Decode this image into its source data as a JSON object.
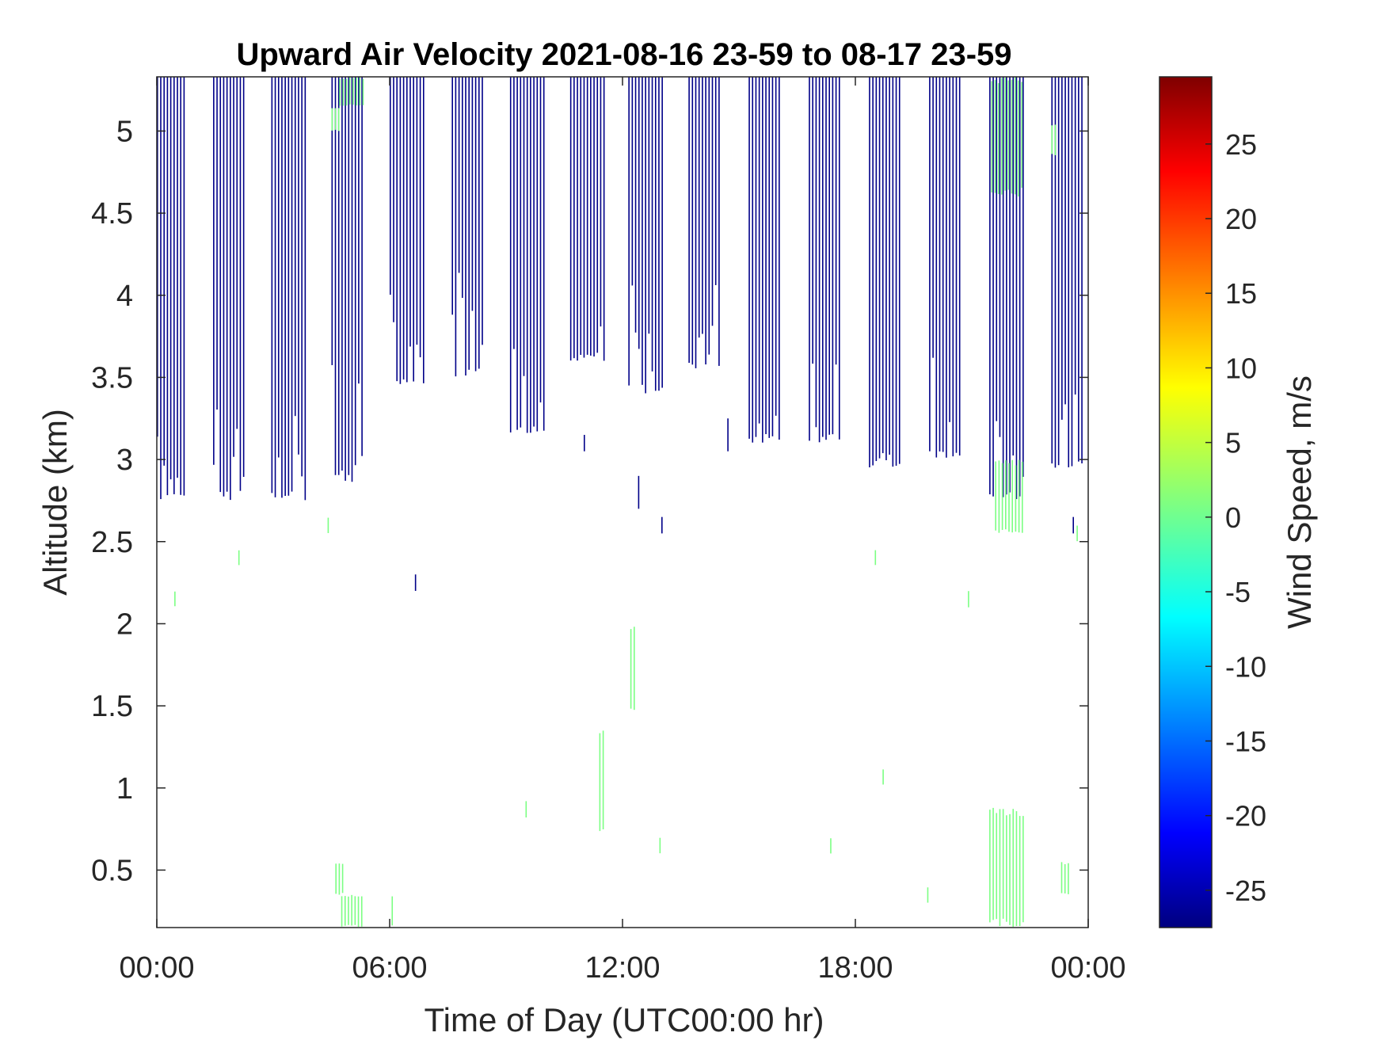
{
  "chart_data": {
    "type": "heatmap",
    "title": "Upward Air Velocity 2021-08-16 23-59 to 08-17 23-59",
    "xlabel": "Time of Day (UTC00:00 hr)",
    "ylabel": "Altitude (km)",
    "colorbar_label": "Wind Speed, m/s",
    "xlim": [
      0,
      24
    ],
    "ylim": [
      0.15,
      5.33
    ],
    "x_ticks": [
      0,
      6,
      12,
      18,
      24
    ],
    "x_tick_labels": [
      "00:00",
      "06:00",
      "12:00",
      "18:00",
      "00:00"
    ],
    "y_ticks": [
      0.5,
      1,
      1.5,
      2,
      2.5,
      3,
      3.5,
      4,
      4.5,
      5
    ],
    "y_tick_labels": [
      "0.5",
      "1",
      "1.5",
      "2",
      "2.5",
      "3",
      "3.5",
      "4",
      "4.5",
      "5"
    ],
    "clim": [
      -27.5,
      29.5
    ],
    "colorbar_ticks": [
      -25,
      -20,
      -15,
      -10,
      -5,
      0,
      5,
      10,
      15,
      20,
      25
    ],
    "colorbar_tick_labels": [
      "-25",
      "-20",
      "-15",
      "-10",
      "-5",
      "0",
      "5",
      "10",
      "15",
      "20",
      "25"
    ],
    "colormap": "jet",
    "grid": false,
    "blocks": [
      {
        "t_start": 0.0,
        "t_end": 0.75,
        "value": -27,
        "bottom": 2.75
      },
      {
        "t_start": 1.45,
        "t_end": 2.3,
        "value": -27,
        "bottom": 2.75
      },
      {
        "t_start": 2.95,
        "t_end": 3.85,
        "value": -27,
        "bottom": 2.75
      },
      {
        "t_start": 4.5,
        "t_end": 5.35,
        "value": -27,
        "bottom": 2.85
      },
      {
        "t_start": 6.0,
        "t_end": 6.9,
        "value": -27,
        "bottom": 3.45
      },
      {
        "t_start": 7.6,
        "t_end": 8.45,
        "value": -27,
        "bottom": 3.5
      },
      {
        "t_start": 9.1,
        "t_end": 10.0,
        "value": -27,
        "bottom": 3.15
      },
      {
        "t_start": 10.65,
        "t_end": 11.55,
        "value": -27,
        "bottom": 3.6
      },
      {
        "t_start": 12.15,
        "t_end": 13.05,
        "value": -27,
        "bottom": 3.4
      },
      {
        "t_start": 13.7,
        "t_end": 14.55,
        "value": -27,
        "bottom": 3.55
      },
      {
        "t_start": 15.25,
        "t_end": 16.1,
        "value": -27,
        "bottom": 3.1
      },
      {
        "t_start": 16.8,
        "t_end": 17.65,
        "value": -27,
        "bottom": 3.1
      },
      {
        "t_start": 18.35,
        "t_end": 19.2,
        "value": -27,
        "bottom": 2.95
      },
      {
        "t_start": 19.9,
        "t_end": 20.75,
        "value": -27,
        "bottom": 3.0
      },
      {
        "t_start": 21.45,
        "t_end": 22.35,
        "value": -27,
        "bottom": 2.75
      },
      {
        "t_start": 23.05,
        "t_end": 23.85,
        "value": -27,
        "bottom": 2.95
      }
    ],
    "patches": [
      {
        "t_start": 4.5,
        "t_end": 4.75,
        "alt_min": 5.0,
        "alt_max": 5.15,
        "value": 0
      },
      {
        "t_start": 4.7,
        "t_end": 5.35,
        "alt_min": 5.15,
        "alt_max": 5.33,
        "value": 0
      },
      {
        "t_start": 4.6,
        "t_end": 4.85,
        "alt_min": 0.35,
        "alt_max": 0.55,
        "value": 0
      },
      {
        "t_start": 4.75,
        "t_end": 5.3,
        "alt_min": 0.15,
        "alt_max": 0.35,
        "value": 0
      },
      {
        "t_start": 21.5,
        "t_end": 22.35,
        "alt_min": 4.6,
        "alt_max": 5.33,
        "value": 0
      },
      {
        "t_start": 21.6,
        "t_end": 22.3,
        "alt_min": 2.55,
        "alt_max": 3.0,
        "value": 0
      },
      {
        "t_start": 21.45,
        "t_end": 22.35,
        "alt_min": 0.15,
        "alt_max": 0.88,
        "value": 0
      },
      {
        "t_start": 23.3,
        "t_end": 23.5,
        "alt_min": 0.35,
        "alt_max": 0.55,
        "value": 0
      },
      {
        "t_start": 23.05,
        "t_end": 23.2,
        "alt_min": 4.85,
        "alt_max": 5.05,
        "value": 0
      },
      {
        "t_start": 11.4,
        "t_end": 11.55,
        "alt_min": 0.7,
        "alt_max": 1.38,
        "value": 0
      },
      {
        "t_start": 12.2,
        "t_end": 12.35,
        "alt_min": 1.45,
        "alt_max": 2.0,
        "value": 0
      },
      {
        "t_start": 6.05,
        "t_end": 6.1,
        "alt_min": 0.15,
        "alt_max": 0.35,
        "value": 0
      },
      {
        "t_start": 0.45,
        "t_end": 0.5,
        "alt_min": 2.1,
        "alt_max": 2.2,
        "value": 0
      },
      {
        "t_start": 2.1,
        "t_end": 2.15,
        "alt_min": 2.35,
        "alt_max": 2.45,
        "value": 0
      },
      {
        "t_start": 18.5,
        "t_end": 18.55,
        "alt_min": 2.35,
        "alt_max": 2.45,
        "value": 0
      },
      {
        "t_start": 20.9,
        "t_end": 20.95,
        "alt_min": 2.1,
        "alt_max": 2.2,
        "value": 0
      },
      {
        "t_start": 9.5,
        "t_end": 9.55,
        "alt_min": 0.82,
        "alt_max": 0.92,
        "value": 0
      },
      {
        "t_start": 18.7,
        "t_end": 18.75,
        "alt_min": 1.02,
        "alt_max": 1.12,
        "value": 0
      },
      {
        "t_start": 17.35,
        "t_end": 17.4,
        "alt_min": 0.6,
        "alt_max": 0.7,
        "value": 0
      },
      {
        "t_start": 19.85,
        "t_end": 19.9,
        "alt_min": 0.3,
        "alt_max": 0.4,
        "value": 0
      },
      {
        "t_start": 4.4,
        "t_end": 4.45,
        "alt_min": 2.55,
        "alt_max": 2.65,
        "value": 0
      },
      {
        "t_start": 12.95,
        "t_end": 13.0,
        "alt_min": 0.6,
        "alt_max": 0.7,
        "value": 0
      },
      {
        "t_start": 23.7,
        "t_end": 23.75,
        "alt_min": 2.5,
        "alt_max": 2.6,
        "value": 0
      }
    ],
    "isolated_downdrafts": [
      {
        "t": 6.65,
        "alt_min": 2.2,
        "alt_max": 2.3,
        "value": -27
      },
      {
        "t": 12.4,
        "alt_min": 2.7,
        "alt_max": 2.9,
        "value": -27
      },
      {
        "t": 13.0,
        "alt_min": 2.55,
        "alt_max": 2.65,
        "value": -27
      },
      {
        "t": 11.0,
        "alt_min": 3.05,
        "alt_max": 3.15,
        "value": -27
      },
      {
        "t": 14.7,
        "alt_min": 3.05,
        "alt_max": 3.25,
        "value": -27
      },
      {
        "t": 23.6,
        "alt_min": 2.55,
        "alt_max": 2.65,
        "value": -27
      }
    ]
  }
}
